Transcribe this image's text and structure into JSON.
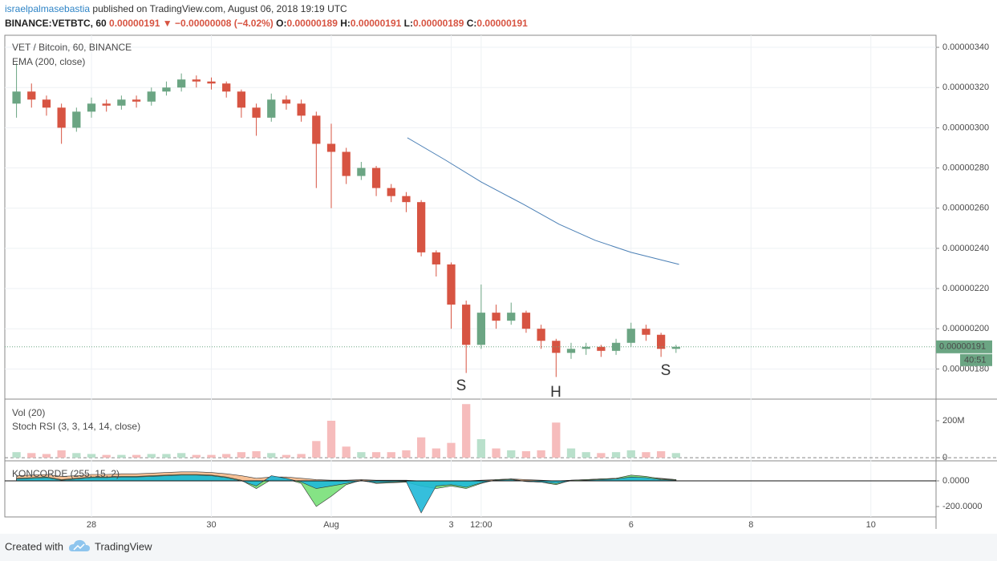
{
  "header": {
    "author": "israelpalmasebastia",
    "published": "published on TradingView.com, August 06, 2018 19:19 UTC",
    "symbol": "BINANCE:VETBTC, 60",
    "price": "0.00000191",
    "arrow": "▼",
    "change": "−0.00000008 (−4.02%)",
    "ohlc": [
      {
        "label": "O:",
        "value": "0.00000189"
      },
      {
        "label": "H:",
        "value": "0.00000191"
      },
      {
        "label": "L:",
        "value": "0.00000189"
      },
      {
        "label": "C:",
        "value": "0.00000191"
      }
    ]
  },
  "chart_data": [
    {
      "type": "candlestick",
      "title": "VET / Bitcoin, 60, BINANCE",
      "x": [
        26.75,
        27,
        27.25,
        27.5,
        27.75,
        28,
        28.25,
        28.5,
        28.75,
        29,
        29.25,
        29.5,
        29.75,
        30,
        30.25,
        30.5,
        30.75,
        31,
        31.25,
        31.5,
        31.75,
        32,
        32.25,
        32.5,
        32.75,
        33,
        33.25,
        33.5,
        33.75,
        34,
        34.25,
        34.5,
        34.75,
        35,
        35.25,
        35.5,
        35.75,
        36,
        36.25,
        36.5,
        36.75,
        37,
        37.25,
        37.5,
        37.75
      ],
      "open": [
        3.12e-07,
        3.18e-07,
        3.14e-07,
        3.1e-07,
        3e-07,
        3.08e-07,
        3.12e-07,
        3.11e-07,
        3.14e-07,
        3.13e-07,
        3.18e-07,
        3.2e-07,
        3.24e-07,
        3.23e-07,
        3.22e-07,
        3.18e-07,
        3.1e-07,
        3.05e-07,
        3.14e-07,
        3.12e-07,
        3.06e-07,
        2.92e-07,
        2.88e-07,
        2.76e-07,
        2.8e-07,
        2.7e-07,
        2.66e-07,
        2.63e-07,
        2.38e-07,
        2.32e-07,
        2.12e-07,
        1.92e-07,
        2.08e-07,
        2.04e-07,
        2.08e-07,
        2e-07,
        1.94e-07,
        1.88e-07,
        1.9e-07,
        1.91e-07,
        1.89e-07,
        1.93e-07,
        2e-07,
        1.97e-07,
        1.9e-07
      ],
      "high": [
        3.32e-07,
        3.22e-07,
        3.16e-07,
        3.12e-07,
        3.1e-07,
        3.15e-07,
        3.14e-07,
        3.16e-07,
        3.16e-07,
        3.2e-07,
        3.23e-07,
        3.27e-07,
        3.26e-07,
        3.25e-07,
        3.23e-07,
        3.19e-07,
        3.12e-07,
        3.17e-07,
        3.16e-07,
        3.14e-07,
        3.08e-07,
        3.02e-07,
        2.9e-07,
        2.83e-07,
        2.81e-07,
        2.72e-07,
        2.68e-07,
        2.64e-07,
        2.39e-07,
        2.33e-07,
        2.14e-07,
        2.22e-07,
        2.12e-07,
        2.13e-07,
        2.09e-07,
        2.02e-07,
        1.95e-07,
        1.93e-07,
        1.93e-07,
        1.92e-07,
        1.95e-07,
        2.03e-07,
        2.02e-07,
        1.98e-07,
        1.92e-07
      ],
      "low": [
        3.05e-07,
        3.1e-07,
        3.06e-07,
        2.92e-07,
        2.98e-07,
        3.05e-07,
        3.08e-07,
        3.09e-07,
        3.1e-07,
        3.11e-07,
        3.16e-07,
        3.18e-07,
        3.2e-07,
        3.19e-07,
        3.15e-07,
        3.05e-07,
        2.96e-07,
        3.03e-07,
        3.09e-07,
        3.03e-07,
        2.7e-07,
        2.6e-07,
        2.72e-07,
        2.74e-07,
        2.66e-07,
        2.63e-07,
        2.58e-07,
        2.36e-07,
        2.26e-07,
        2e-07,
        1.78e-07,
        1.9e-07,
        2e-07,
        2.02e-07,
        1.98e-07,
        1.9e-07,
        1.76e-07,
        1.85e-07,
        1.87e-07,
        1.86e-07,
        1.87e-07,
        1.91e-07,
        1.94e-07,
        1.86e-07,
        1.88e-07
      ],
      "close": [
        3.18e-07,
        3.14e-07,
        3.1e-07,
        3e-07,
        3.08e-07,
        3.12e-07,
        3.11e-07,
        3.14e-07,
        3.13e-07,
        3.18e-07,
        3.2e-07,
        3.24e-07,
        3.23e-07,
        3.22e-07,
        3.18e-07,
        3.1e-07,
        3.05e-07,
        3.14e-07,
        3.12e-07,
        3.06e-07,
        2.92e-07,
        2.88e-07,
        2.76e-07,
        2.8e-07,
        2.7e-07,
        2.66e-07,
        2.63e-07,
        2.38e-07,
        2.32e-07,
        2.12e-07,
        1.92e-07,
        2.08e-07,
        2.04e-07,
        2.08e-07,
        2e-07,
        1.94e-07,
        1.88e-07,
        1.9e-07,
        1.91e-07,
        1.89e-07,
        1.93e-07,
        2e-07,
        1.97e-07,
        1.9e-07,
        1.91e-07
      ],
      "up_color": "#6ba583",
      "down_color": "#d75442",
      "ylim": [
        1.65e-07,
        3.46e-07
      ],
      "yticks": [
        {
          "value": 1.8e-07,
          "label": "0.00000180"
        },
        {
          "value": 2e-07,
          "label": "0.00000200"
        },
        {
          "value": 2.2e-07,
          "label": "0.00000220"
        },
        {
          "value": 2.4e-07,
          "label": "0.00000240"
        },
        {
          "value": 2.6e-07,
          "label": "0.00000260"
        },
        {
          "value": 2.8e-07,
          "label": "0.00000280"
        },
        {
          "value": 3e-07,
          "label": "0.00000300"
        },
        {
          "value": 3.2e-07,
          "label": "0.00000320"
        },
        {
          "value": 3.4e-07,
          "label": "0.00000340"
        }
      ],
      "xlim": [
        26.555,
        42.087
      ],
      "xticks": [
        {
          "value": 28,
          "label": "28"
        },
        {
          "value": 30,
          "label": "30"
        },
        {
          "value": 32,
          "label": "Aug"
        },
        {
          "value": 34,
          "label": "3"
        },
        {
          "value": 34.5,
          "label": "12:00"
        },
        {
          "value": 37,
          "label": "6"
        },
        {
          "value": 39,
          "label": "8"
        },
        {
          "value": 41,
          "label": "10"
        }
      ],
      "grid": true,
      "overlay": {
        "name": "EMA (200, close)",
        "color": "#4a7fb5",
        "x": [
          33.27,
          33.9,
          34.5,
          35.2,
          35.8,
          36.4,
          37,
          37.8
        ],
        "values": [
          2.95e-07,
          2.84e-07,
          2.73e-07,
          2.62e-07,
          2.52e-07,
          2.44e-07,
          2.38e-07,
          2.32e-07
        ]
      },
      "last_price": {
        "value": 1.91e-07,
        "label": "0.00000191",
        "color": "#6ba583"
      },
      "countdown": "40:51",
      "annotations": [
        "S",
        "H",
        "S"
      ]
    },
    {
      "type": "bar",
      "title": "Vol (20)",
      "subtitle": "Stoch RSI (3, 3, 14, 14, close)",
      "x": [
        26.75,
        27,
        27.25,
        27.5,
        27.75,
        28,
        28.25,
        28.5,
        28.75,
        29,
        29.25,
        29.5,
        29.75,
        30,
        30.25,
        30.5,
        30.75,
        31,
        31.25,
        31.5,
        31.75,
        32,
        32.25,
        32.5,
        32.75,
        33,
        33.25,
        33.5,
        33.75,
        34,
        34.25,
        34.5,
        34.75,
        35,
        35.25,
        35.5,
        35.75,
        36,
        36.25,
        36.5,
        36.75,
        37,
        37.25,
        37.5,
        37.75
      ],
      "values": [
        30000000.0,
        25000000.0,
        20000000.0,
        40000000.0,
        25000000.0,
        20000000.0,
        15000000.0,
        15000000.0,
        15000000.0,
        20000000.0,
        20000000.0,
        25000000.0,
        15000000.0,
        15000000.0,
        20000000.0,
        30000000.0,
        35000000.0,
        25000000.0,
        15000000.0,
        20000000.0,
        90000000.0,
        200000000.0,
        60000000.0,
        30000000.0,
        30000000.0,
        30000000.0,
        40000000.0,
        110000000.0,
        50000000.0,
        80000000.0,
        290000000.0,
        100000000.0,
        50000000.0,
        40000000.0,
        35000000.0,
        40000000.0,
        190000000.0,
        50000000.0,
        30000000.0,
        25000000.0,
        30000000.0,
        40000000.0,
        30000000.0,
        35000000.0,
        25000000.0
      ],
      "up_color": "#b9e0cb",
      "down_color": "#f6bcbc",
      "ylim": [
        -17000000.0,
        317000000.0
      ],
      "yticks": [
        {
          "value": 200000000.0,
          "label": "200M"
        },
        0
      ],
      "xlim": [
        26.555,
        42.087
      ]
    },
    {
      "type": "area",
      "title": "KONCORDE (255, 15, 2)",
      "x": [
        26.75,
        27,
        27.25,
        27.5,
        27.75,
        28,
        28.25,
        28.5,
        28.75,
        29,
        29.25,
        29.5,
        29.75,
        30,
        30.25,
        30.5,
        30.75,
        31,
        31.25,
        31.5,
        31.75,
        32,
        32.25,
        32.5,
        32.75,
        33,
        33.25,
        33.5,
        33.75,
        34,
        34.25,
        34.5,
        34.75,
        35,
        35.25,
        35.5,
        35.75,
        36,
        36.25,
        36.5,
        36.75,
        37,
        37.25,
        37.5,
        37.75
      ],
      "series": [
        {
          "color": "#f5b98a",
          "values": [
            40,
            45,
            50,
            35,
            40,
            50,
            50,
            55,
            55,
            60,
            65,
            70,
            70,
            65,
            55,
            40,
            20,
            30,
            30,
            20,
            10,
            5,
            5,
            10,
            5,
            5,
            5,
            0,
            0,
            0,
            0,
            5,
            10,
            15,
            10,
            5,
            0,
            5,
            10,
            15,
            20,
            35,
            30,
            20,
            10
          ]
        },
        {
          "color": "#78e078",
          "values": [
            20,
            25,
            30,
            10,
            20,
            30,
            30,
            35,
            35,
            40,
            45,
            50,
            50,
            45,
            30,
            5,
            -60,
            10,
            15,
            -20,
            -200,
            -120,
            -30,
            5,
            -20,
            -15,
            -10,
            -40,
            -60,
            -40,
            -60,
            -20,
            10,
            15,
            -5,
            -10,
            -30,
            5,
            10,
            15,
            20,
            45,
            35,
            15,
            10
          ]
        },
        {
          "color": "#1fb8d8",
          "values": [
            15,
            20,
            25,
            5,
            15,
            25,
            25,
            30,
            30,
            35,
            40,
            45,
            45,
            40,
            25,
            0,
            -40,
            40,
            20,
            -10,
            -60,
            -40,
            -20,
            0,
            -15,
            -10,
            -5,
            -250,
            -40,
            -30,
            -50,
            -15,
            5,
            10,
            -5,
            -10,
            -20,
            0,
            5,
            10,
            15,
            30,
            25,
            10,
            5
          ]
        }
      ],
      "ylim": [
        -281,
        156
      ],
      "yticks": [
        {
          "value": 0,
          "label": "0.0000"
        },
        {
          "value": -200,
          "label": "-200.0000"
        }
      ],
      "xlim": [
        26.555,
        42.087
      ]
    }
  ],
  "footer": {
    "created": "Created with",
    "brand": "TradingView"
  }
}
